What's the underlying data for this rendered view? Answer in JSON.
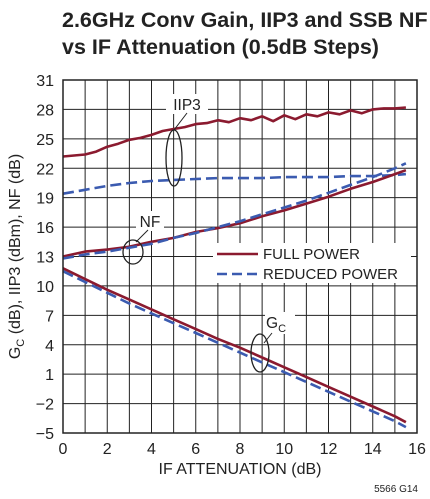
{
  "chart_data": {
    "type": "line",
    "title": "2.6GHz Conv Gain, IIP3 and SSB NF",
    "subtitle": "vs IF Attenuation (0.5dB Steps)",
    "xlabel": "IF ATTENUATION (dB)",
    "ylabel": "G",
    "ylabel_sub": "C",
    "ylabel_rest": " (dB), IIP3 (dBm), NF (dB)",
    "xlim": [
      0,
      16
    ],
    "ylim": [
      -5,
      31
    ],
    "x_ticks": [
      "0",
      "2",
      "4",
      "6",
      "8",
      "10",
      "12",
      "14",
      "16"
    ],
    "y_ticks": [
      "−5",
      "−2",
      "1",
      "4",
      "7",
      "10",
      "13",
      "16",
      "19",
      "22",
      "25",
      "28",
      "31"
    ],
    "grid": true,
    "legend_position": "right-middle",
    "legend": [
      {
        "label": "FULL POWER",
        "color": "#8b1a2f",
        "style": "solid"
      },
      {
        "label": "REDUCED POWER",
        "color": "#3b5bb0",
        "style": "dashed"
      }
    ],
    "annotations": {
      "iip3": "IIP3",
      "nf": "NF",
      "gc": "G",
      "gc_sub": "C"
    },
    "figure_id": "5566 G14",
    "series": [
      {
        "name": "FULL POWER",
        "group": "IIP3",
        "x": [
          0,
          0.5,
          1,
          1.5,
          2,
          2.5,
          3,
          3.5,
          4,
          4.5,
          5,
          5.5,
          6,
          6.5,
          7,
          7.5,
          8,
          8.5,
          9,
          9.5,
          10,
          10.5,
          11,
          11.5,
          12,
          12.5,
          13,
          13.5,
          14,
          14.5,
          15,
          15.5
        ],
        "y": [
          23.2,
          23.3,
          23.4,
          23.7,
          24.2,
          24.5,
          24.9,
          25.1,
          25.4,
          25.8,
          26.0,
          26.2,
          26.5,
          26.6,
          26.9,
          26.7,
          27.1,
          26.9,
          27.3,
          26.8,
          27.4,
          27.0,
          27.5,
          27.3,
          27.7,
          27.5,
          27.9,
          27.6,
          28.0,
          28.1,
          28.1,
          28.2
        ]
      },
      {
        "name": "REDUCED POWER",
        "group": "IIP3",
        "x": [
          0,
          1,
          2,
          3,
          4,
          5,
          6,
          7,
          8,
          9,
          10,
          11,
          12,
          13,
          14,
          15,
          15.5
        ],
        "y": [
          19.4,
          19.8,
          20.2,
          20.5,
          20.7,
          20.8,
          20.9,
          21.0,
          21.0,
          21.0,
          21.1,
          21.1,
          21.1,
          21.2,
          21.2,
          21.3,
          21.4
        ]
      },
      {
        "name": "FULL POWER",
        "group": "NF",
        "x": [
          0,
          1,
          2,
          3,
          4,
          5,
          6,
          7,
          8,
          9,
          10,
          11,
          12,
          13,
          14,
          15,
          15.5
        ],
        "y": [
          13.0,
          13.5,
          13.7,
          14.0,
          14.5,
          14.9,
          15.5,
          15.9,
          16.4,
          17.1,
          17.7,
          18.4,
          19.1,
          19.9,
          20.6,
          21.4,
          21.8
        ]
      },
      {
        "name": "REDUCED POWER",
        "group": "NF",
        "x": [
          0,
          1,
          2,
          3,
          4,
          5,
          6,
          7,
          8,
          9,
          10,
          11,
          12,
          13,
          14,
          15,
          15.5
        ],
        "y": [
          12.8,
          13.2,
          13.5,
          13.9,
          14.3,
          14.9,
          15.4,
          16.0,
          16.6,
          17.3,
          18.0,
          18.7,
          19.5,
          20.3,
          21.1,
          22.0,
          22.5
        ]
      },
      {
        "name": "FULL POWER",
        "group": "GC",
        "x": [
          0,
          1,
          2,
          3,
          4,
          5,
          6,
          7,
          8,
          9,
          10,
          11,
          12,
          13,
          14,
          15,
          15.5
        ],
        "y": [
          11.8,
          10.7,
          9.6,
          8.6,
          7.6,
          6.6,
          5.6,
          4.6,
          3.7,
          2.7,
          1.7,
          0.7,
          -0.3,
          -1.3,
          -2.3,
          -3.3,
          -3.9
        ]
      },
      {
        "name": "REDUCED POWER",
        "group": "GC",
        "x": [
          0,
          1,
          2,
          3,
          4,
          5,
          6,
          7,
          8,
          9,
          10,
          11,
          12,
          13,
          14,
          15,
          15.5
        ],
        "y": [
          11.5,
          10.4,
          9.3,
          8.2,
          7.2,
          6.2,
          5.2,
          4.2,
          3.2,
          2.2,
          1.2,
          0.2,
          -0.8,
          -1.8,
          -2.8,
          -3.8,
          -4.4
        ]
      }
    ]
  }
}
